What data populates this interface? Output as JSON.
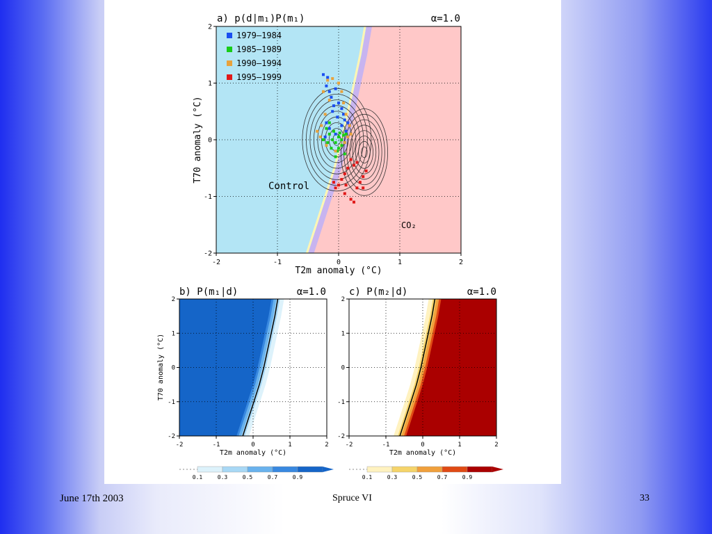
{
  "footer": {
    "date": "June 17th 2003",
    "title": "Spruce  VI",
    "page": "33"
  },
  "colors": {
    "control_region": "#b3e5f5",
    "co2_region": "#ffc8c8",
    "boundary_band": "#c8b4f0",
    "boundary_band2": "#fff5b4",
    "blue_scale": [
      "#ddf2fb",
      "#a8d8f5",
      "#69b2ed",
      "#3888e0",
      "#1565c8"
    ],
    "red_scale": [
      "#fff2c0",
      "#f5d46a",
      "#f0a03c",
      "#e04a14",
      "#aa0000"
    ]
  },
  "chart_data": [
    {
      "id": "a",
      "type": "scatter",
      "title": "a)  p(d|m₁)P(m₁)",
      "alpha": "α=1.0",
      "xlabel": "T2m  anomaly  (°C)",
      "ylabel": "T70  anomaly  (°C)",
      "xlim": [
        -2,
        2
      ],
      "ylim": [
        -2,
        2
      ],
      "xticks": [
        "-2",
        "-1",
        "0",
        "1",
        "2"
      ],
      "yticks": [
        "-2",
        "-1",
        "0",
        "1",
        "2"
      ],
      "grid": true,
      "legend_position": "top-left",
      "region_labels": [
        "Control",
        "CO₂"
      ],
      "boundary": [
        [
          -0.45,
          -2
        ],
        [
          -0.3,
          -1.5
        ],
        [
          -0.15,
          -1
        ],
        [
          0.0,
          -0.5
        ],
        [
          0.12,
          0
        ],
        [
          0.22,
          0.5
        ],
        [
          0.32,
          1
        ],
        [
          0.42,
          1.5
        ],
        [
          0.5,
          2
        ]
      ],
      "contour_centers": [
        {
          "name": "Control",
          "x": -0.03,
          "y": 0.0
        },
        {
          "name": "CO₂",
          "x": 0.42,
          "y": -0.22
        }
      ],
      "series": [
        {
          "name": "1979–1984",
          "color": "#1a4ef0",
          "points": [
            [
              -0.25,
              1.15
            ],
            [
              -0.18,
              1.1
            ],
            [
              -0.2,
              0.95
            ],
            [
              -0.15,
              0.85
            ],
            [
              -0.12,
              0.75
            ],
            [
              -0.05,
              0.9
            ],
            [
              0.0,
              0.65
            ],
            [
              -0.08,
              0.6
            ],
            [
              0.05,
              0.55
            ],
            [
              0.08,
              0.45
            ],
            [
              -0.02,
              0.4
            ],
            [
              0.1,
              0.35
            ],
            [
              -0.1,
              0.5
            ],
            [
              -0.2,
              0.3
            ],
            [
              0.05,
              0.25
            ],
            [
              -0.15,
              0.2
            ],
            [
              -0.05,
              0.1
            ],
            [
              0.12,
              0.15
            ],
            [
              0.15,
              0.3
            ],
            [
              -0.22,
              0.05
            ]
          ]
        },
        {
          "name": "1985–1989",
          "color": "#18cc18",
          "points": [
            [
              -0.2,
              0.2
            ],
            [
              -0.15,
              0.1
            ],
            [
              -0.1,
              0.0
            ],
            [
              -0.05,
              -0.05
            ],
            [
              0.0,
              0.05
            ],
            [
              0.05,
              0.0
            ],
            [
              0.1,
              -0.05
            ],
            [
              -0.12,
              -0.15
            ],
            [
              -0.02,
              -0.2
            ],
            [
              0.05,
              -0.1
            ],
            [
              -0.08,
              0.15
            ],
            [
              0.02,
              0.12
            ],
            [
              0.08,
              0.08
            ],
            [
              -0.18,
              -0.05
            ],
            [
              -0.05,
              -0.3
            ],
            [
              0.1,
              -0.25
            ],
            [
              0.0,
              -0.15
            ],
            [
              -0.15,
              0.3
            ],
            [
              0.12,
              0.1
            ],
            [
              -0.25,
              0.0
            ]
          ]
        },
        {
          "name": "1990–1994",
          "color": "#e8a23c",
          "points": [
            [
              -0.18,
              1.05
            ],
            [
              -0.1,
              1.08
            ],
            [
              0.0,
              1.0
            ],
            [
              0.05,
              0.85
            ],
            [
              0.08,
              0.65
            ],
            [
              0.12,
              0.45
            ],
            [
              0.18,
              0.25
            ],
            [
              0.2,
              0.1
            ],
            [
              0.1,
              -0.05
            ],
            [
              -0.05,
              -0.2
            ],
            [
              -0.2,
              -0.1
            ],
            [
              -0.3,
              0.05
            ],
            [
              -0.28,
              0.25
            ],
            [
              -0.22,
              0.45
            ],
            [
              -0.15,
              0.7
            ],
            [
              -0.25,
              0.85
            ],
            [
              0.15,
              0.05
            ],
            [
              -0.35,
              0.15
            ]
          ]
        },
        {
          "name": "1995–1999",
          "color": "#e01818",
          "points": [
            [
              0.2,
              -0.35
            ],
            [
              0.25,
              -0.45
            ],
            [
              0.3,
              -0.4
            ],
            [
              0.15,
              -0.5
            ],
            [
              0.1,
              -0.6
            ],
            [
              0.05,
              -0.7
            ],
            [
              0.0,
              -0.8
            ],
            [
              -0.05,
              -0.85
            ],
            [
              0.1,
              -0.95
            ],
            [
              0.2,
              -1.05
            ],
            [
              0.25,
              -1.1
            ],
            [
              0.3,
              -0.85
            ],
            [
              0.35,
              -0.75
            ],
            [
              0.4,
              -0.65
            ],
            [
              0.45,
              -0.55
            ],
            [
              0.4,
              -0.85
            ],
            [
              -0.08,
              -0.75
            ],
            [
              0.12,
              -0.8
            ]
          ]
        }
      ]
    },
    {
      "id": "b",
      "type": "heatmap",
      "title": "b)  P(m₁|d)",
      "alpha": "α=1.0",
      "xlabel": "T2m  anomaly  (°C)",
      "ylabel": "T70  anomaly  (°C)",
      "xlim": [
        -2,
        2
      ],
      "ylim": [
        -2,
        2
      ],
      "xticks": [
        "-2",
        "-1",
        "0",
        "1",
        "2"
      ],
      "yticks": [
        "-2",
        "-1",
        "0",
        "1",
        "2"
      ],
      "grid": true,
      "colorbar_ticks": [
        "0.1",
        "0.3",
        "0.5",
        "0.7",
        "0.9"
      ],
      "boundary": [
        [
          -0.45,
          -2
        ],
        [
          -0.3,
          -1.5
        ],
        [
          -0.15,
          -1
        ],
        [
          0.0,
          -0.5
        ],
        [
          0.12,
          0
        ],
        [
          0.22,
          0.5
        ],
        [
          0.32,
          1
        ],
        [
          0.42,
          1.5
        ],
        [
          0.5,
          2
        ]
      ]
    },
    {
      "id": "c",
      "type": "heatmap",
      "title": "c)  P(m₂|d)",
      "alpha": "α=1.0",
      "xlabel": "T2m  anomaly  (°C)",
      "ylabel": "",
      "xlim": [
        -2,
        2
      ],
      "ylim": [
        -2,
        2
      ],
      "xticks": [
        "-2",
        "-1",
        "0",
        "1",
        "2"
      ],
      "yticks": [
        "-2",
        "-1",
        "0",
        "1",
        "2"
      ],
      "grid": true,
      "colorbar_ticks": [
        "0.1",
        "0.3",
        "0.5",
        "0.7",
        "0.9"
      ],
      "boundary": [
        [
          -0.45,
          -2
        ],
        [
          -0.3,
          -1.5
        ],
        [
          -0.15,
          -1
        ],
        [
          0.0,
          -0.5
        ],
        [
          0.12,
          0
        ],
        [
          0.22,
          0.5
        ],
        [
          0.32,
          1
        ],
        [
          0.42,
          1.5
        ],
        [
          0.5,
          2
        ]
      ]
    }
  ]
}
